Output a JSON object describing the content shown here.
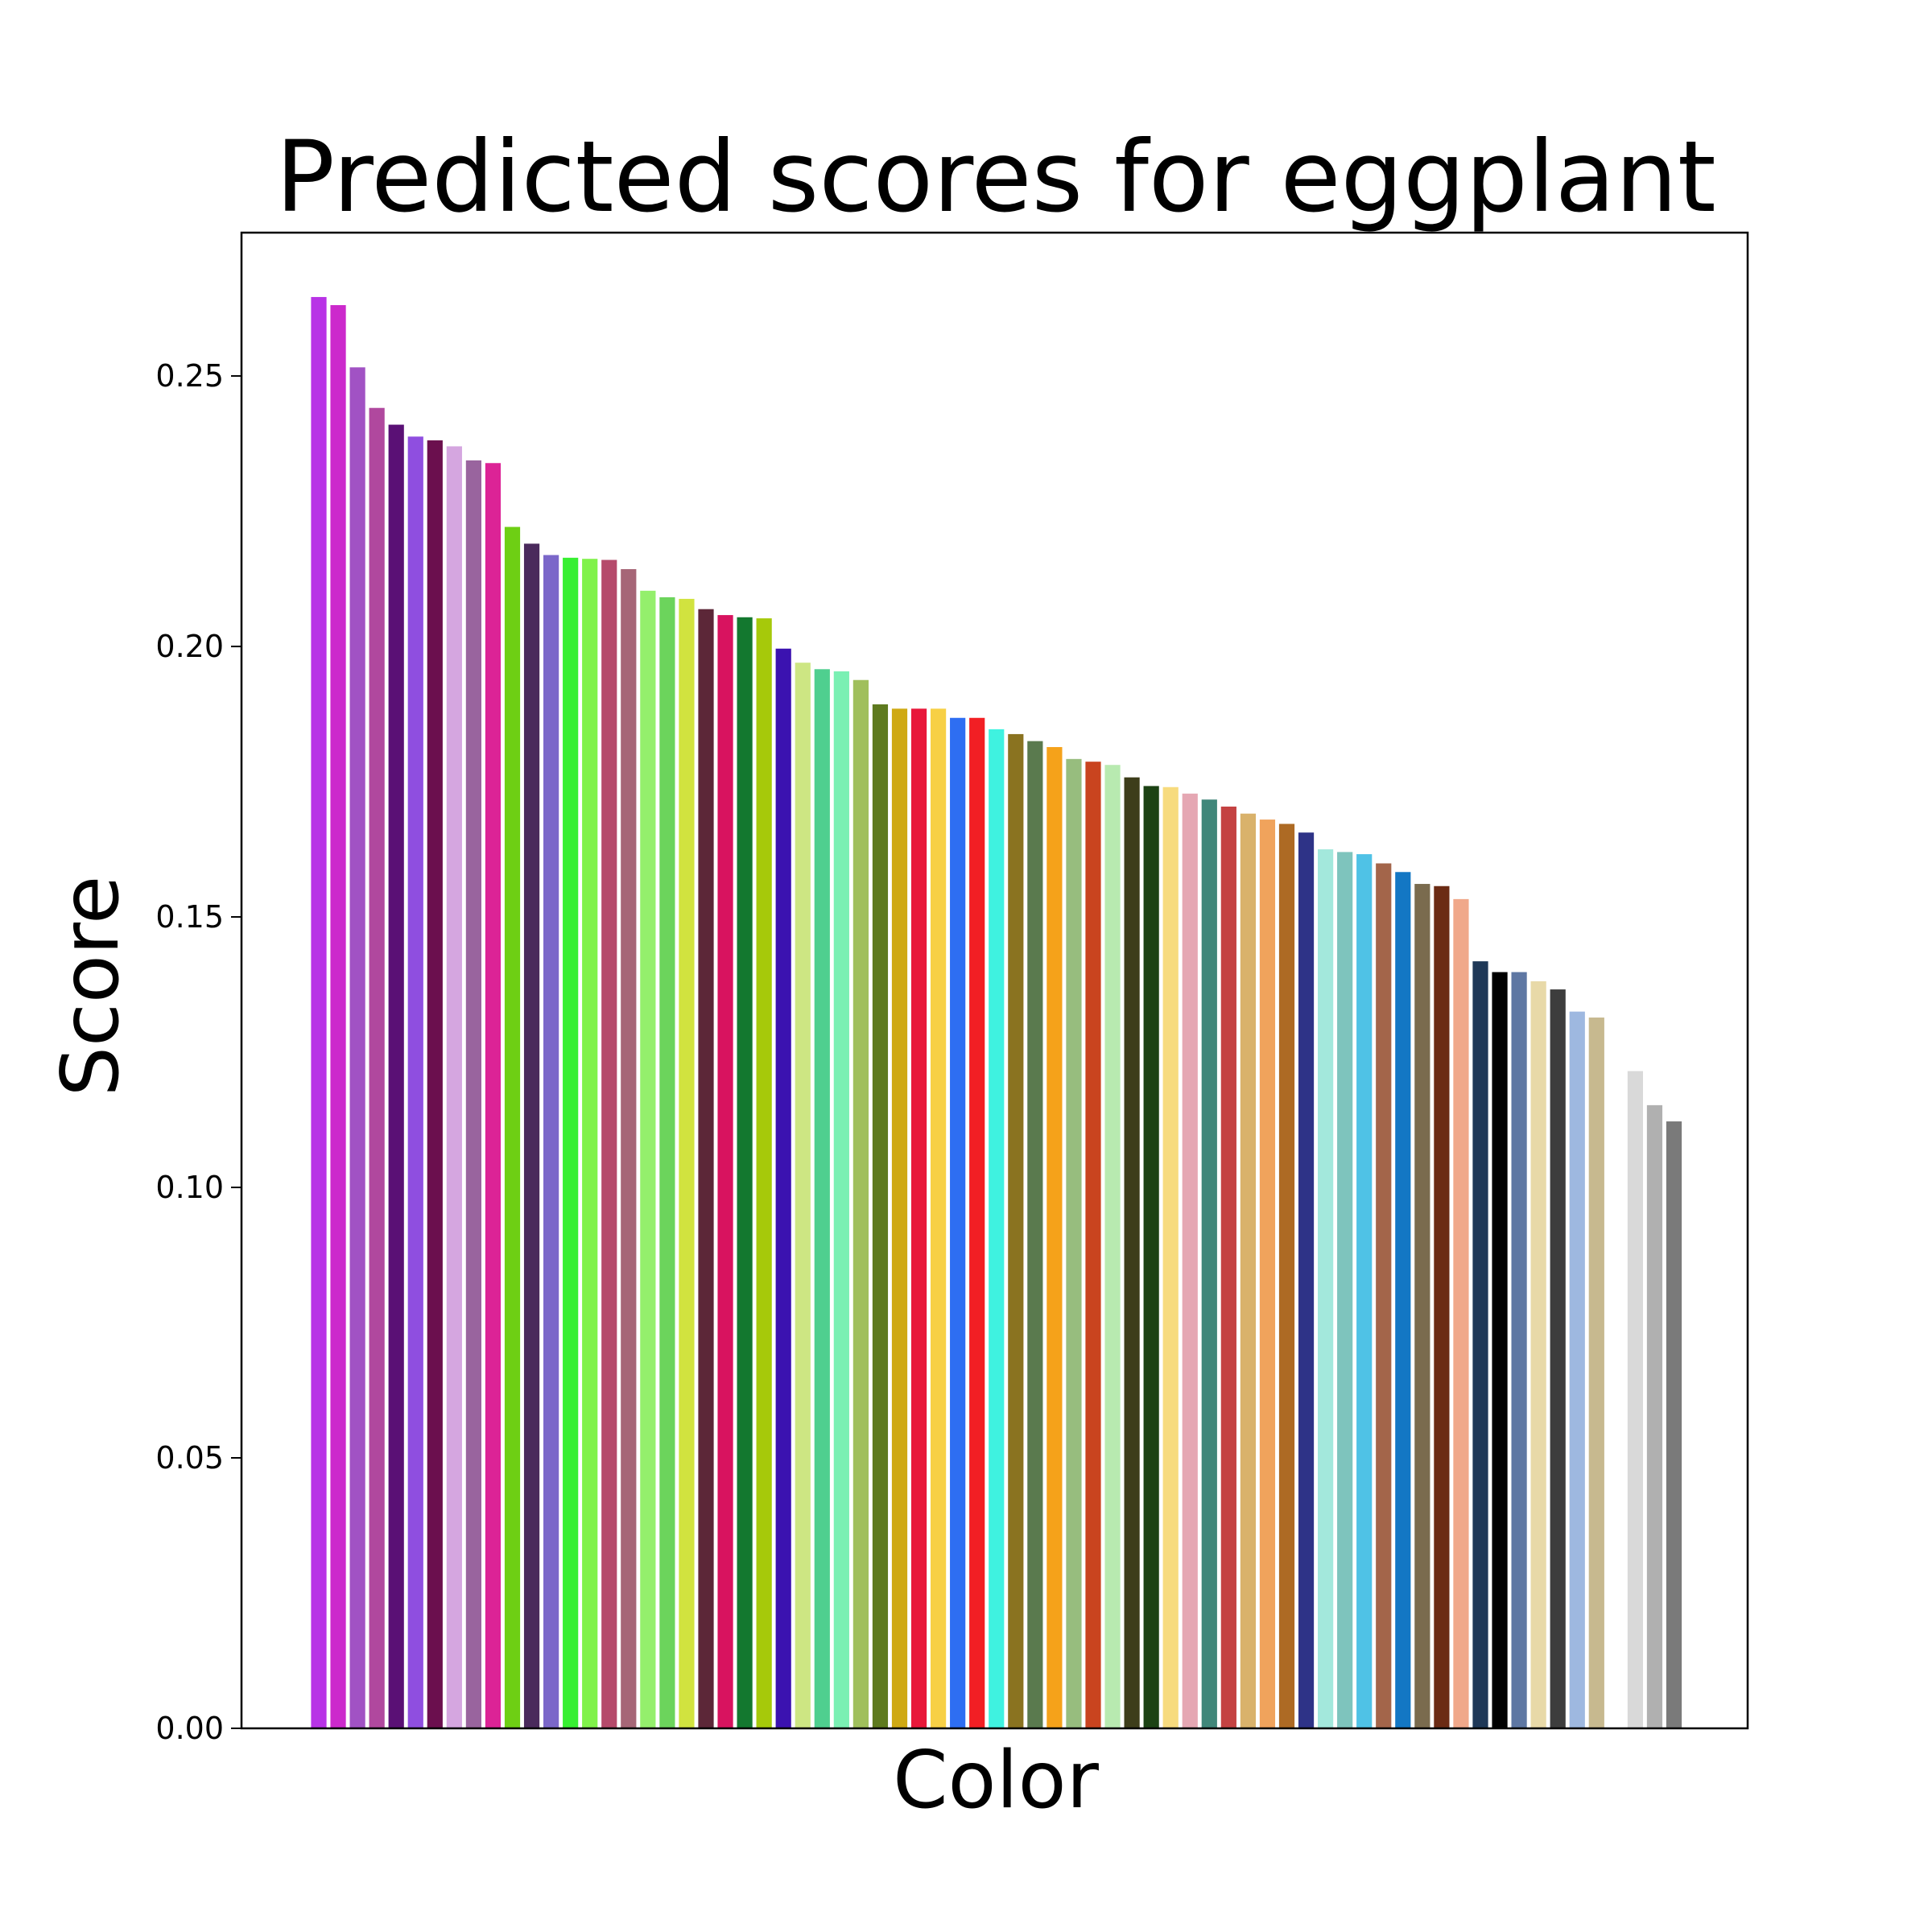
{
  "chart_data": {
    "type": "bar",
    "title": "Predicted scores for eggplant",
    "xlabel": "Color",
    "ylabel": "Score",
    "ylim": [
      0,
      0.2765
    ],
    "yticks": [
      0.0,
      0.05,
      0.1,
      0.15,
      0.2,
      0.25
    ],
    "ytick_labels": [
      "0.00",
      "0.05",
      "0.10",
      "0.15",
      "0.20",
      "0.25"
    ],
    "grid": false,
    "legend": "none",
    "bars": [
      {
        "value": 0.2646,
        "color": "#b833e6"
      },
      {
        "value": 0.2631,
        "color": "#cc29cc"
      },
      {
        "value": 0.2516,
        "color": "#a152c4"
      },
      {
        "value": 0.2441,
        "color": "#b0489e"
      },
      {
        "value": 0.241,
        "color": "#5a1075"
      },
      {
        "value": 0.2388,
        "color": "#8f4ee0"
      },
      {
        "value": 0.2381,
        "color": "#6b0f4e"
      },
      {
        "value": 0.237,
        "color": "#d5a6e0"
      },
      {
        "value": 0.2344,
        "color": "#99649e"
      },
      {
        "value": 0.2339,
        "color": "#dc2396"
      },
      {
        "value": 0.2221,
        "color": "#6ecf14"
      },
      {
        "value": 0.219,
        "color": "#4a2a5c"
      },
      {
        "value": 0.2169,
        "color": "#7b67c9"
      },
      {
        "value": 0.2164,
        "color": "#38ef32"
      },
      {
        "value": 0.2162,
        "color": "#80f24a"
      },
      {
        "value": 0.216,
        "color": "#b54a6b"
      },
      {
        "value": 0.2143,
        "color": "#a66677"
      },
      {
        "value": 0.2103,
        "color": "#94ef6c"
      },
      {
        "value": 0.2091,
        "color": "#6cd45c"
      },
      {
        "value": 0.2088,
        "color": "#d1e33f"
      },
      {
        "value": 0.2069,
        "color": "#5c2738"
      },
      {
        "value": 0.2058,
        "color": "#d8135f"
      },
      {
        "value": 0.2054,
        "color": "#13782f"
      },
      {
        "value": 0.2052,
        "color": "#a6c90a"
      },
      {
        "value": 0.1996,
        "color": "#3b12b0"
      },
      {
        "value": 0.197,
        "color": "#cde683"
      },
      {
        "value": 0.1958,
        "color": "#4fcf8f"
      },
      {
        "value": 0.1954,
        "color": "#7af0b3"
      },
      {
        "value": 0.1938,
        "color": "#a0bf5c"
      },
      {
        "value": 0.1893,
        "color": "#5e7a1f"
      },
      {
        "value": 0.1885,
        "color": "#cfa913"
      },
      {
        "value": 0.1885,
        "color": "#e8173a"
      },
      {
        "value": 0.1885,
        "color": "#f7d045"
      },
      {
        "value": 0.1868,
        "color": "#2e6ef2"
      },
      {
        "value": 0.1868,
        "color": "#f21f24"
      },
      {
        "value": 0.1847,
        "color": "#3ff2e0"
      },
      {
        "value": 0.1838,
        "color": "#8a7320"
      },
      {
        "value": 0.1825,
        "color": "#5a7a4e"
      },
      {
        "value": 0.1814,
        "color": "#f5a21a"
      },
      {
        "value": 0.1792,
        "color": "#97bd7e"
      },
      {
        "value": 0.1787,
        "color": "#c9441f"
      },
      {
        "value": 0.1781,
        "color": "#b8eab0"
      },
      {
        "value": 0.1758,
        "color": "#3d3d1a"
      },
      {
        "value": 0.1742,
        "color": "#1c4214"
      },
      {
        "value": 0.174,
        "color": "#f7db7e"
      },
      {
        "value": 0.1728,
        "color": "#e5a7b3"
      },
      {
        "value": 0.1717,
        "color": "#40877a"
      },
      {
        "value": 0.1704,
        "color": "#c44242"
      },
      {
        "value": 0.1691,
        "color": "#d9b26b"
      },
      {
        "value": 0.168,
        "color": "#f0a35c"
      },
      {
        "value": 0.1672,
        "color": "#ad6a24"
      },
      {
        "value": 0.1656,
        "color": "#2e3387"
      },
      {
        "value": 0.1625,
        "color": "#a3e8dc"
      },
      {
        "value": 0.162,
        "color": "#7ec4bd"
      },
      {
        "value": 0.1616,
        "color": "#4fc2e6"
      },
      {
        "value": 0.1599,
        "color": "#a3654a"
      },
      {
        "value": 0.1583,
        "color": "#1377c4"
      },
      {
        "value": 0.1561,
        "color": "#7a6b4e"
      },
      {
        "value": 0.1557,
        "color": "#6b2b14"
      },
      {
        "value": 0.1533,
        "color": "#f0a88a"
      },
      {
        "value": 0.1418,
        "color": "#1f3857"
      },
      {
        "value": 0.1398,
        "color": "#000000"
      },
      {
        "value": 0.1398,
        "color": "#5e77a3"
      },
      {
        "value": 0.1381,
        "color": "#e8d9a8"
      },
      {
        "value": 0.1366,
        "color": "#3d3d3d"
      },
      {
        "value": 0.1325,
        "color": "#9eb8e0"
      },
      {
        "value": 0.1314,
        "color": "#c7b98f"
      },
      {
        "value": 0.0,
        "color": "#ffffff"
      },
      {
        "value": 0.1215,
        "color": "#d9d9d9"
      },
      {
        "value": 0.1152,
        "color": "#b0b0b0"
      },
      {
        "value": 0.1122,
        "color": "#7a7a7a"
      }
    ]
  }
}
